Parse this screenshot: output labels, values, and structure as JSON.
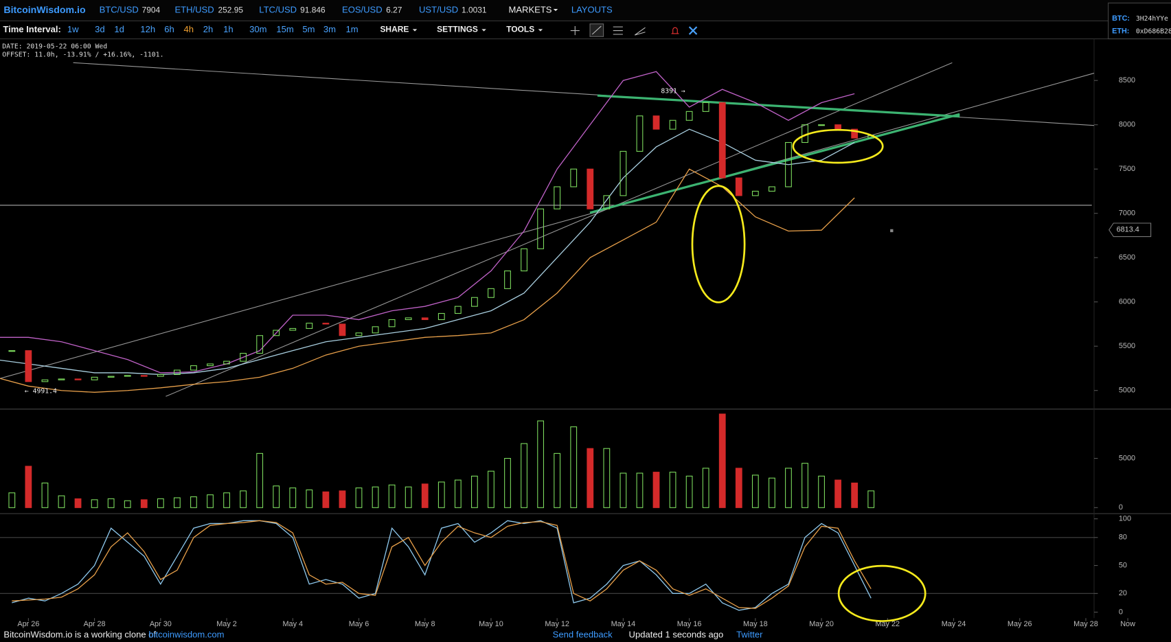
{
  "header": {
    "logo": "BitcoinWisdom.io",
    "tickers": [
      {
        "pair": "BTC/USD",
        "price": 7904
      },
      {
        "pair": "ETH/USD",
        "price": 252.95
      },
      {
        "pair": "LTC/USD",
        "price": 91.846
      },
      {
        "pair": "EOS/USD",
        "price": 6.27
      },
      {
        "pair": "UST/USD",
        "price": 1.0031
      }
    ],
    "menus": [
      "MARKETS",
      "LAYOUTS"
    ],
    "wallets": [
      {
        "label": "BTC:",
        "address": "3H24hYYe"
      },
      {
        "label": "ETH:",
        "address": "0xD686B28"
      }
    ]
  },
  "toolbar": {
    "label": "Time Interval:",
    "intervals": [
      "1w",
      "3d",
      "1d",
      "12h",
      "6h",
      "4h",
      "2h",
      "1h",
      "30m",
      "15m",
      "5m",
      "3m",
      "1m"
    ],
    "active": "4h",
    "menus": [
      "SHARE",
      "SETTINGS",
      "TOOLS"
    ]
  },
  "info": {
    "date": "DATE: 2019-05-22 06:00 Wed",
    "offset": "OFFSET: 11.0h, -13.91% / +16.16%, -1101."
  },
  "chart_data": [
    {
      "type": "candlestick",
      "x": [
        -0.5,
        0,
        0.5,
        1,
        1.5,
        2,
        2.5,
        3,
        3.5,
        4,
        4.5,
        5,
        5.5,
        6,
        6.5,
        7,
        7.5,
        8,
        8.5,
        9,
        9.5,
        10,
        10.5,
        11,
        11.5,
        12,
        12.5,
        13,
        13.5,
        14,
        14.5,
        15,
        15.5,
        16,
        16.5,
        17,
        17.5,
        18,
        18.5,
        19,
        19.5,
        20,
        20.5,
        21,
        21.5,
        22,
        22.5,
        23,
        23.5,
        24,
        24.5,
        25,
        25.5
      ],
      "close": [
        5450,
        5100,
        5120,
        5130,
        5120,
        5150,
        5160,
        5170,
        5160,
        5180,
        5230,
        5280,
        5300,
        5330,
        5420,
        5620,
        5680,
        5700,
        5760,
        5750,
        5620,
        5650,
        5720,
        5800,
        5820,
        5800,
        5870,
        5950,
        6050,
        6150,
        6350,
        6600,
        7050,
        7300,
        7500,
        7050,
        7200,
        7700,
        8100,
        7950,
        8050,
        8150,
        8250,
        7400,
        7200,
        7250,
        7300,
        7800,
        8000,
        8000,
        7950,
        7850,
        7880
      ],
      "up_color": "#7ddc5e",
      "down_color": "#d42a2a",
      "bands": {
        "x": [
          -1,
          0,
          1,
          2,
          3,
          4,
          5,
          6,
          7,
          8,
          9,
          10,
          11,
          12,
          13,
          14,
          15,
          16,
          17,
          18,
          19,
          20,
          21,
          22,
          23,
          24,
          25
        ],
        "upper": [
          5600,
          5600,
          5550,
          5450,
          5350,
          5200,
          5210,
          5300,
          5450,
          5850,
          5850,
          5800,
          5900,
          5950,
          6050,
          6350,
          6800,
          7500,
          8000,
          8500,
          8600,
          8200,
          8400,
          8250,
          8050,
          8250,
          8350
        ],
        "middle": [
          5350,
          5300,
          5250,
          5200,
          5200,
          5180,
          5200,
          5250,
          5350,
          5450,
          5550,
          5600,
          5650,
          5700,
          5800,
          5900,
          6100,
          6500,
          6900,
          7400,
          7750,
          7950,
          7800,
          7600,
          7550,
          7600,
          7800
        ],
        "lower": [
          5150,
          5050,
          5000,
          4980,
          5000,
          5030,
          5070,
          5100,
          5150,
          5250,
          5400,
          5500,
          5550,
          5600,
          5620,
          5650,
          5800,
          6100,
          6500,
          6700,
          6900,
          7500,
          7300,
          6960,
          6800,
          6810,
          7175
        ],
        "colors": {
          "upper": "#c062c8",
          "middle": "#a9cfe0",
          "lower": "#e8a04a"
        }
      },
      "xlim": [
        -0.86,
        32.25
      ],
      "ylim": [
        4790,
        8945
      ],
      "yticks": [
        5000,
        5500,
        6000,
        6500,
        7000,
        7500,
        8000,
        8500
      ],
      "annotations": [
        "8391 →",
        "← 4991.4"
      ],
      "last_price": 6813.4
    },
    {
      "type": "bar",
      "x": [
        -0.5,
        0,
        0.5,
        1,
        1.5,
        2,
        2.5,
        3,
        3.5,
        4,
        4.5,
        5,
        5.5,
        6,
        6.5,
        7,
        7.5,
        8,
        8.5,
        9,
        9.5,
        10,
        10.5,
        11,
        11.5,
        12,
        12.5,
        13,
        13.5,
        14,
        14.5,
        15,
        15.5,
        16,
        16.5,
        17,
        17.5,
        18,
        18.5,
        19,
        19.5,
        20,
        20.5,
        21,
        21.5,
        22,
        22.5,
        23,
        23.5,
        24,
        24.5,
        25,
        25.5
      ],
      "values": [
        1500,
        4200,
        2500,
        1200,
        900,
        800,
        900,
        700,
        800,
        900,
        1000,
        1100,
        1300,
        1500,
        1700,
        5500,
        2200,
        2000,
        1800,
        1600,
        1700,
        2000,
        2100,
        2300,
        2100,
        2400,
        2600,
        2800,
        3200,
        3700,
        5000,
        6500,
        8800,
        5500,
        8200,
        6000,
        6000,
        3500,
        3500,
        3600,
        3600,
        3200,
        4000,
        9500,
        4000,
        3300,
        3000,
        4000,
        4500,
        3200,
        2800,
        2500,
        1700
      ],
      "xlim": [
        -0.86,
        32.25
      ],
      "ylim": [
        0,
        10000
      ],
      "yticks": [
        0,
        5000
      ]
    },
    {
      "type": "line",
      "x": [
        -0.5,
        0,
        0.5,
        1,
        1.5,
        2,
        2.5,
        3,
        3.5,
        4,
        4.5,
        5,
        5.5,
        6,
        6.5,
        7,
        7.5,
        8,
        8.5,
        9,
        9.5,
        10,
        10.5,
        11,
        11.5,
        12,
        12.5,
        13,
        13.5,
        14,
        14.5,
        15,
        15.5,
        16,
        16.5,
        17,
        17.5,
        18,
        18.5,
        19,
        19.5,
        20,
        20.5,
        21,
        21.5,
        22,
        22.5,
        23,
        23.5,
        24,
        24.5,
        25,
        25.5
      ],
      "series": [
        {
          "color": "#8ec9ee",
          "values": [
            10,
            15,
            12,
            20,
            30,
            50,
            90,
            75,
            60,
            30,
            60,
            90,
            95,
            95,
            98,
            98,
            95,
            80,
            30,
            35,
            30,
            15,
            20,
            90,
            70,
            40,
            90,
            95,
            75,
            85,
            98,
            95,
            98,
            90,
            10,
            15,
            30,
            50,
            55,
            40,
            20,
            20,
            30,
            10,
            2,
            5,
            20,
            30,
            80,
            95,
            85,
            50,
            15
          ]
        },
        {
          "color": "#e8a04a",
          "values": [
            12,
            13,
            14,
            16,
            25,
            40,
            70,
            85,
            65,
            35,
            45,
            80,
            93,
            95,
            96,
            98,
            96,
            85,
            40,
            30,
            32,
            20,
            18,
            70,
            80,
            50,
            75,
            92,
            85,
            80,
            92,
            96,
            97,
            93,
            20,
            12,
            25,
            45,
            55,
            45,
            25,
            18,
            25,
            15,
            5,
            4,
            15,
            28,
            70,
            92,
            90,
            55,
            25
          ]
        }
      ],
      "xlim": [
        -0.86,
        32.25
      ],
      "ylim": [
        0,
        100
      ],
      "yticks": [
        0,
        20,
        50,
        80,
        100
      ],
      "levels": [
        20,
        80
      ],
      "xticks": [
        {
          "value": 0,
          "label": "Apr 26"
        },
        {
          "value": 2,
          "label": "Apr 28"
        },
        {
          "value": 4,
          "label": "Apr 30"
        },
        {
          "value": 6,
          "label": "May 2"
        },
        {
          "value": 8,
          "label": "May 4"
        },
        {
          "value": 10,
          "label": "May 6"
        },
        {
          "value": 12,
          "label": "May 8"
        },
        {
          "value": 14,
          "label": "May 10"
        },
        {
          "value": 16,
          "label": "May 12"
        },
        {
          "value": 18,
          "label": "May 14"
        },
        {
          "value": 20,
          "label": "May 16"
        },
        {
          "value": 22,
          "label": "May 18"
        },
        {
          "value": 24,
          "label": "May 20"
        },
        {
          "value": 26,
          "label": "May 22"
        },
        {
          "value": 28,
          "label": "May 24"
        },
        {
          "value": 30,
          "label": "May 26"
        },
        {
          "value": 32,
          "label": "May 28"
        },
        {
          "value": 33.27,
          "label": "Now"
        }
      ]
    }
  ],
  "footer": {
    "clone_text": "BitcoinWisdom.io is a working clone of",
    "link": "bitcoinwisdom.com",
    "feedback": "Send feedback",
    "updated": "Updated 1 seconds ago",
    "twitter": "Twitter"
  }
}
